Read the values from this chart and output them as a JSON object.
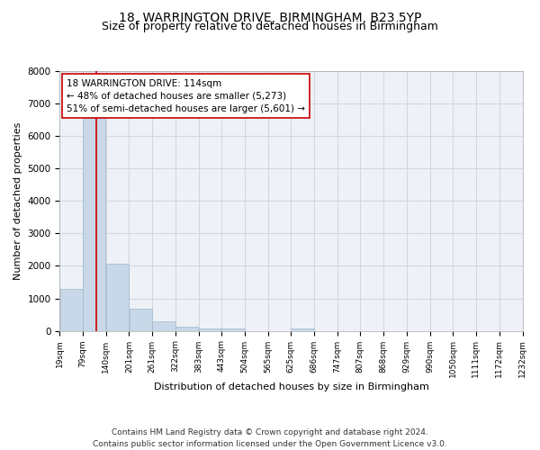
{
  "title": "18, WARRINGTON DRIVE, BIRMINGHAM, B23 5YP",
  "subtitle": "Size of property relative to detached houses in Birmingham",
  "xlabel": "Distribution of detached houses by size in Birmingham",
  "ylabel": "Number of detached properties",
  "bar_color": "#c8d8e8",
  "bar_edge_color": "#a0b8cc",
  "grid_color": "#d0d8e0",
  "background_color": "#eef2f7",
  "property_line_x": 114,
  "property_line_color": "#cc0000",
  "annotation_text": "18 WARRINGTON DRIVE: 114sqm\n← 48% of detached houses are smaller (5,273)\n51% of semi-detached houses are larger (5,601) →",
  "annotation_box_color": "white",
  "annotation_box_edge": "#cc0000",
  "bins_left": [
    19,
    79,
    140,
    201,
    261,
    322,
    383,
    443,
    504,
    565,
    625,
    686,
    747,
    807,
    868,
    929,
    990,
    1050,
    1111,
    1172
  ],
  "bin_width": 61,
  "bar_heights": [
    1300,
    6550,
    2060,
    680,
    290,
    130,
    80,
    60,
    0,
    0,
    80,
    0,
    0,
    0,
    0,
    0,
    0,
    0,
    0,
    0
  ],
  "ylim": [
    0,
    8000
  ],
  "yticks": [
    0,
    1000,
    2000,
    3000,
    4000,
    5000,
    6000,
    7000,
    8000
  ],
  "tick_labels": [
    "19sqm",
    "79sqm",
    "140sqm",
    "201sqm",
    "261sqm",
    "322sqm",
    "383sqm",
    "443sqm",
    "504sqm",
    "565sqm",
    "625sqm",
    "686sqm",
    "747sqm",
    "807sqm",
    "868sqm",
    "929sqm",
    "990sqm",
    "1050sqm",
    "1111sqm",
    "1172sqm",
    "1232sqm"
  ],
  "footer_text": "Contains HM Land Registry data © Crown copyright and database right 2024.\nContains public sector information licensed under the Open Government Licence v3.0.",
  "title_fontsize": 10,
  "subtitle_fontsize": 9,
  "axis_label_fontsize": 8,
  "tick_fontsize": 6.5,
  "annotation_fontsize": 7.5,
  "footer_fontsize": 6.5
}
